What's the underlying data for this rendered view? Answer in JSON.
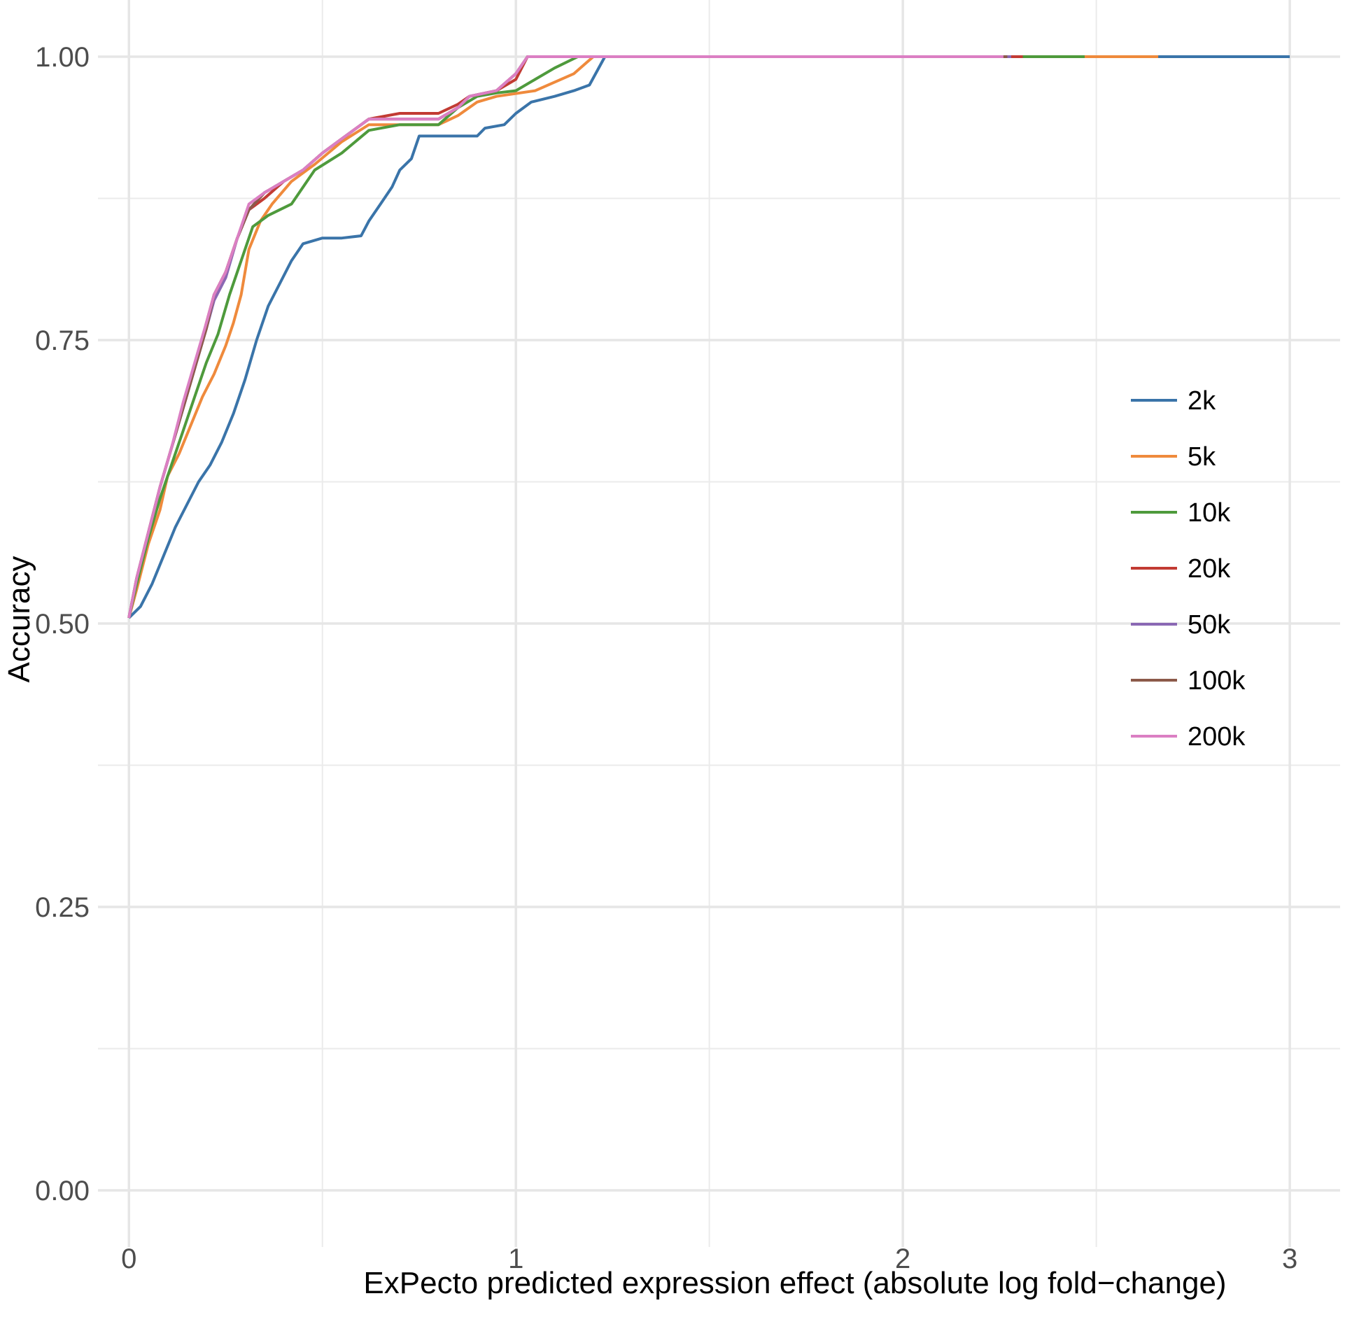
{
  "chart_data": {
    "type": "line",
    "title": "",
    "xlabel": "ExPecto predicted expression effect (absolute log fold−change)",
    "ylabel": "Accuracy",
    "xlim": [
      -0.08,
      3.13
    ],
    "ylim": [
      -0.05,
      1.05
    ],
    "x_ticks": [
      0,
      1,
      2,
      3
    ],
    "x_tick_labels": [
      "0",
      "1",
      "2",
      "3"
    ],
    "y_ticks": [
      0,
      0.25,
      0.5,
      0.75,
      1.0
    ],
    "y_tick_labels": [
      "0.00",
      "0.25",
      "0.50",
      "0.75",
      "1.00"
    ],
    "x_minor_grid": [
      0.5,
      1.5,
      2.5
    ],
    "y_minor_grid": [
      0.125,
      0.375,
      0.625,
      0.875
    ],
    "grid": true,
    "legend_position": "right",
    "series": [
      {
        "name": "2k",
        "color": "#3A74A9",
        "points": [
          [
            0.0,
            0.505
          ],
          [
            0.03,
            0.515
          ],
          [
            0.06,
            0.535
          ],
          [
            0.09,
            0.56
          ],
          [
            0.12,
            0.585
          ],
          [
            0.15,
            0.605
          ],
          [
            0.18,
            0.625
          ],
          [
            0.21,
            0.64
          ],
          [
            0.24,
            0.66
          ],
          [
            0.27,
            0.685
          ],
          [
            0.3,
            0.715
          ],
          [
            0.33,
            0.75
          ],
          [
            0.36,
            0.78
          ],
          [
            0.39,
            0.8
          ],
          [
            0.42,
            0.82
          ],
          [
            0.45,
            0.835
          ],
          [
            0.5,
            0.84
          ],
          [
            0.55,
            0.84
          ],
          [
            0.6,
            0.842
          ],
          [
            0.62,
            0.855
          ],
          [
            0.65,
            0.87
          ],
          [
            0.68,
            0.885
          ],
          [
            0.7,
            0.9
          ],
          [
            0.73,
            0.91
          ],
          [
            0.75,
            0.93
          ],
          [
            0.8,
            0.93
          ],
          [
            0.85,
            0.93
          ],
          [
            0.9,
            0.93
          ],
          [
            0.92,
            0.937
          ],
          [
            0.97,
            0.94
          ],
          [
            1.0,
            0.95
          ],
          [
            1.04,
            0.96
          ],
          [
            1.1,
            0.965
          ],
          [
            1.15,
            0.97
          ],
          [
            1.19,
            0.975
          ],
          [
            1.23,
            1.0
          ],
          [
            3.0,
            1.0
          ]
        ]
      },
      {
        "name": "5k",
        "color": "#EF8A3C",
        "points": [
          [
            0.0,
            0.505
          ],
          [
            0.02,
            0.53
          ],
          [
            0.05,
            0.57
          ],
          [
            0.08,
            0.6
          ],
          [
            0.1,
            0.63
          ],
          [
            0.13,
            0.65
          ],
          [
            0.16,
            0.675
          ],
          [
            0.19,
            0.7
          ],
          [
            0.22,
            0.72
          ],
          [
            0.25,
            0.745
          ],
          [
            0.27,
            0.765
          ],
          [
            0.29,
            0.79
          ],
          [
            0.31,
            0.83
          ],
          [
            0.34,
            0.855
          ],
          [
            0.37,
            0.87
          ],
          [
            0.42,
            0.89
          ],
          [
            0.48,
            0.905
          ],
          [
            0.55,
            0.925
          ],
          [
            0.62,
            0.94
          ],
          [
            0.7,
            0.94
          ],
          [
            0.8,
            0.94
          ],
          [
            0.85,
            0.948
          ],
          [
            0.9,
            0.96
          ],
          [
            0.95,
            0.965
          ],
          [
            1.05,
            0.97
          ],
          [
            1.15,
            0.985
          ],
          [
            1.2,
            1.0
          ],
          [
            2.66,
            1.0
          ]
        ]
      },
      {
        "name": "10k",
        "color": "#4E9A3C",
        "points": [
          [
            0.0,
            0.505
          ],
          [
            0.02,
            0.535
          ],
          [
            0.05,
            0.575
          ],
          [
            0.08,
            0.61
          ],
          [
            0.11,
            0.64
          ],
          [
            0.14,
            0.67
          ],
          [
            0.17,
            0.7
          ],
          [
            0.2,
            0.73
          ],
          [
            0.23,
            0.755
          ],
          [
            0.26,
            0.79
          ],
          [
            0.29,
            0.82
          ],
          [
            0.32,
            0.85
          ],
          [
            0.36,
            0.86
          ],
          [
            0.42,
            0.87
          ],
          [
            0.48,
            0.9
          ],
          [
            0.55,
            0.915
          ],
          [
            0.62,
            0.935
          ],
          [
            0.7,
            0.94
          ],
          [
            0.8,
            0.94
          ],
          [
            0.85,
            0.955
          ],
          [
            0.9,
            0.965
          ],
          [
            0.95,
            0.968
          ],
          [
            1.0,
            0.97
          ],
          [
            1.05,
            0.98
          ],
          [
            1.1,
            0.99
          ],
          [
            1.16,
            1.0
          ],
          [
            2.47,
            1.0
          ]
        ]
      },
      {
        "name": "20k",
        "color": "#C23B33",
        "points": [
          [
            0.0,
            0.505
          ],
          [
            0.02,
            0.54
          ],
          [
            0.05,
            0.58
          ],
          [
            0.08,
            0.62
          ],
          [
            0.11,
            0.655
          ],
          [
            0.14,
            0.69
          ],
          [
            0.17,
            0.725
          ],
          [
            0.2,
            0.765
          ],
          [
            0.22,
            0.79
          ],
          [
            0.25,
            0.81
          ],
          [
            0.28,
            0.84
          ],
          [
            0.31,
            0.865
          ],
          [
            0.35,
            0.875
          ],
          [
            0.4,
            0.89
          ],
          [
            0.45,
            0.9
          ],
          [
            0.5,
            0.915
          ],
          [
            0.56,
            0.93
          ],
          [
            0.62,
            0.945
          ],
          [
            0.7,
            0.95
          ],
          [
            0.8,
            0.95
          ],
          [
            0.85,
            0.958
          ],
          [
            0.88,
            0.965
          ],
          [
            0.95,
            0.97
          ],
          [
            1.0,
            0.98
          ],
          [
            1.03,
            1.0
          ],
          [
            2.31,
            1.0
          ]
        ]
      },
      {
        "name": "50k",
        "color": "#8A68B4",
        "points": [
          [
            0.0,
            0.505
          ],
          [
            0.02,
            0.54
          ],
          [
            0.05,
            0.58
          ],
          [
            0.08,
            0.62
          ],
          [
            0.11,
            0.655
          ],
          [
            0.14,
            0.69
          ],
          [
            0.17,
            0.725
          ],
          [
            0.2,
            0.76
          ],
          [
            0.22,
            0.785
          ],
          [
            0.25,
            0.805
          ],
          [
            0.28,
            0.84
          ],
          [
            0.31,
            0.865
          ],
          [
            0.35,
            0.88
          ],
          [
            0.4,
            0.89
          ],
          [
            0.45,
            0.9
          ],
          [
            0.5,
            0.915
          ],
          [
            0.56,
            0.93
          ],
          [
            0.62,
            0.945
          ],
          [
            0.7,
            0.945
          ],
          [
            0.8,
            0.945
          ],
          [
            0.85,
            0.955
          ],
          [
            0.88,
            0.965
          ],
          [
            0.95,
            0.97
          ],
          [
            1.0,
            0.985
          ],
          [
            1.03,
            1.0
          ],
          [
            2.28,
            1.0
          ]
        ]
      },
      {
        "name": "100k",
        "color": "#8C5A4A",
        "points": [
          [
            0.0,
            0.505
          ],
          [
            0.02,
            0.54
          ],
          [
            0.05,
            0.58
          ],
          [
            0.08,
            0.62
          ],
          [
            0.11,
            0.655
          ],
          [
            0.14,
            0.69
          ],
          [
            0.17,
            0.725
          ],
          [
            0.2,
            0.76
          ],
          [
            0.22,
            0.79
          ],
          [
            0.25,
            0.81
          ],
          [
            0.28,
            0.84
          ],
          [
            0.31,
            0.865
          ],
          [
            0.35,
            0.88
          ],
          [
            0.4,
            0.89
          ],
          [
            0.45,
            0.9
          ],
          [
            0.5,
            0.915
          ],
          [
            0.56,
            0.93
          ],
          [
            0.62,
            0.945
          ],
          [
            0.7,
            0.945
          ],
          [
            0.8,
            0.945
          ],
          [
            0.85,
            0.955
          ],
          [
            0.88,
            0.965
          ],
          [
            0.95,
            0.97
          ],
          [
            1.0,
            0.985
          ],
          [
            1.03,
            1.0
          ],
          [
            2.27,
            1.0
          ]
        ]
      },
      {
        "name": "200k",
        "color": "#DB7FC3",
        "points": [
          [
            0.0,
            0.505
          ],
          [
            0.02,
            0.54
          ],
          [
            0.05,
            0.58
          ],
          [
            0.08,
            0.62
          ],
          [
            0.11,
            0.655
          ],
          [
            0.14,
            0.695
          ],
          [
            0.17,
            0.73
          ],
          [
            0.2,
            0.765
          ],
          [
            0.22,
            0.79
          ],
          [
            0.25,
            0.81
          ],
          [
            0.28,
            0.84
          ],
          [
            0.31,
            0.87
          ],
          [
            0.35,
            0.88
          ],
          [
            0.4,
            0.89
          ],
          [
            0.45,
            0.9
          ],
          [
            0.5,
            0.915
          ],
          [
            0.56,
            0.93
          ],
          [
            0.62,
            0.945
          ],
          [
            0.7,
            0.945
          ],
          [
            0.8,
            0.945
          ],
          [
            0.85,
            0.955
          ],
          [
            0.88,
            0.965
          ],
          [
            0.95,
            0.97
          ],
          [
            1.0,
            0.985
          ],
          [
            1.03,
            1.0
          ],
          [
            2.26,
            1.0
          ]
        ]
      }
    ]
  }
}
